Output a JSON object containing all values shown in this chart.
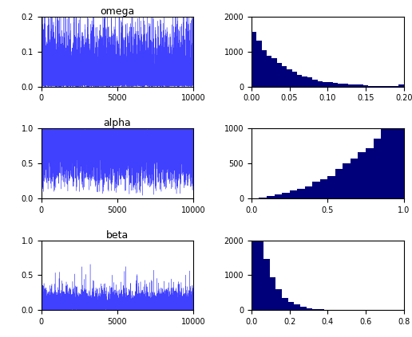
{
  "trace_line_color": "#4040ff",
  "hist_color": "#00007B",
  "n_samples": 10000,
  "omega_ylim": [
    0,
    0.2
  ],
  "omega_yticks": [
    0,
    0.1,
    0.2
  ],
  "omega_xlim_hist": [
    0,
    0.2
  ],
  "omega_xticks_hist": [
    0,
    0.05,
    0.1,
    0.15,
    0.2
  ],
  "omega_ylim_hist": [
    0,
    2000
  ],
  "omega_yticks_hist": [
    0,
    1000,
    2000
  ],
  "alpha_ylim": [
    0,
    1
  ],
  "alpha_yticks": [
    0,
    0.5,
    1
  ],
  "alpha_xlim_hist": [
    0,
    1
  ],
  "alpha_xticks_hist": [
    0,
    0.5,
    1
  ],
  "alpha_ylim_hist": [
    0,
    1000
  ],
  "alpha_yticks_hist": [
    0,
    500,
    1000
  ],
  "beta_ylim": [
    0,
    1
  ],
  "beta_yticks": [
    0,
    0.5,
    1
  ],
  "beta_xlim_hist": [
    0,
    0.8
  ],
  "beta_xticks_hist": [
    0,
    0.2,
    0.4,
    0.6,
    0.8
  ],
  "beta_ylim_hist": [
    0,
    2000
  ],
  "beta_yticks_hist": [
    0,
    1000,
    2000
  ],
  "trace_xlim": [
    0,
    10000
  ],
  "trace_xticks": [
    0,
    5000,
    10000
  ],
  "title_above_row0": "omega",
  "title_above_row1": "alpha",
  "title_above_row2": "beta",
  "n_bins_omega": 30,
  "n_bins_alpha": 20,
  "n_bins_beta": 25
}
